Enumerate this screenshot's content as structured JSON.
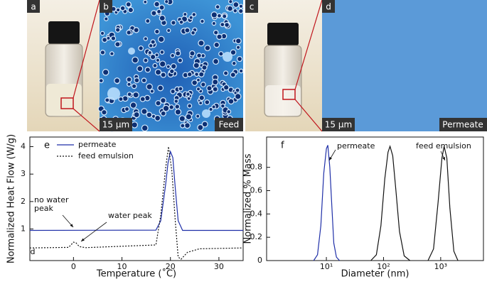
{
  "panels": [
    {
      "label": "a"
    },
    {
      "label": "b",
      "scale": "15 µm",
      "caption": "Feed"
    },
    {
      "label": "c"
    },
    {
      "label": "d",
      "scale": "15 µm",
      "caption": "Permeate"
    }
  ],
  "chart_data": [
    {
      "type": "line",
      "panel_label": "e",
      "xlabel": "Temperature (˚C)",
      "ylabel": "Normalized Heat Flow (W/g)",
      "xlim": [
        -9,
        35
      ],
      "ylim": [
        -0.15,
        4.35
      ],
      "xticks": [
        0,
        10,
        20,
        30
      ],
      "yticks": [
        1,
        2,
        3,
        4
      ],
      "legend": "upper left",
      "series": [
        {
          "name": "permeate",
          "color": "#1f2fa8",
          "dash": false,
          "x": [
            -9,
            17,
            18,
            19,
            19.5,
            20,
            20.5,
            21,
            21.6,
            22.5,
            35
          ],
          "values": [
            0.95,
            0.96,
            1.3,
            2.6,
            3.4,
            3.82,
            3.6,
            2.5,
            1.3,
            0.95,
            0.95
          ]
        },
        {
          "name": "feed emulsion",
          "color": "#111111",
          "dash": true,
          "x": [
            -9,
            -1,
            0,
            0.5,
            1.2,
            2.5,
            17,
            18,
            19,
            19.6,
            20.3,
            21,
            21.6,
            22.2,
            23.5,
            26,
            35
          ],
          "values": [
            0.31,
            0.33,
            0.52,
            0.5,
            0.36,
            0.32,
            0.42,
            1.5,
            3.2,
            4.0,
            3.1,
            1.3,
            -0.02,
            -0.1,
            0.15,
            0.28,
            0.31
          ]
        }
      ],
      "annotations": [
        {
          "lines": [
            "no water",
            "peak"
          ]
        },
        {
          "lines": [
            "water peak"
          ]
        },
        {
          "lines": [
            "d"
          ]
        }
      ]
    },
    {
      "type": "line",
      "panel_label": "f",
      "xscale": "log",
      "xlabel": "Diameter (nm)",
      "ylabel": "Normalized % Mass",
      "xlim": [
        0.9,
        5600
      ],
      "ylim": [
        0,
        1.06
      ],
      "xticks": [
        {
          "value": 10,
          "label": "10¹"
        },
        {
          "value": 100,
          "label": "10²"
        },
        {
          "value": 1000,
          "label": "10³"
        }
      ],
      "yticks": [
        0,
        0.2,
        0.4,
        0.6,
        0.8
      ],
      "series": [
        {
          "name": "permeate",
          "color": "#1f2fa8",
          "dash": false,
          "x": [
            6,
            7,
            8,
            9,
            10,
            10.6,
            11.5,
            12.5,
            13.5,
            15,
            17
          ],
          "values": [
            0,
            0.05,
            0.3,
            0.75,
            0.96,
            0.99,
            0.8,
            0.45,
            0.15,
            0.03,
            0
          ]
        },
        {
          "name": "feed emulsion",
          "color": "#111111",
          "dash": false,
          "x": [
            60,
            75,
            90,
            105,
            120,
            130,
            145,
            165,
            190,
            230,
            290,
            400,
            600,
            750,
            900,
            1050,
            1150,
            1280,
            1450,
            1700,
            2000
          ],
          "values": [
            0,
            0.05,
            0.3,
            0.7,
            0.93,
            0.98,
            0.9,
            0.6,
            0.25,
            0.04,
            0,
            null,
            0,
            0.1,
            0.5,
            0.88,
            0.98,
            0.88,
            0.45,
            0.08,
            0
          ]
        }
      ],
      "annotations": [
        {
          "lines": [
            "permeate"
          ]
        },
        {
          "lines": [
            "feed emulsion"
          ]
        }
      ]
    }
  ]
}
